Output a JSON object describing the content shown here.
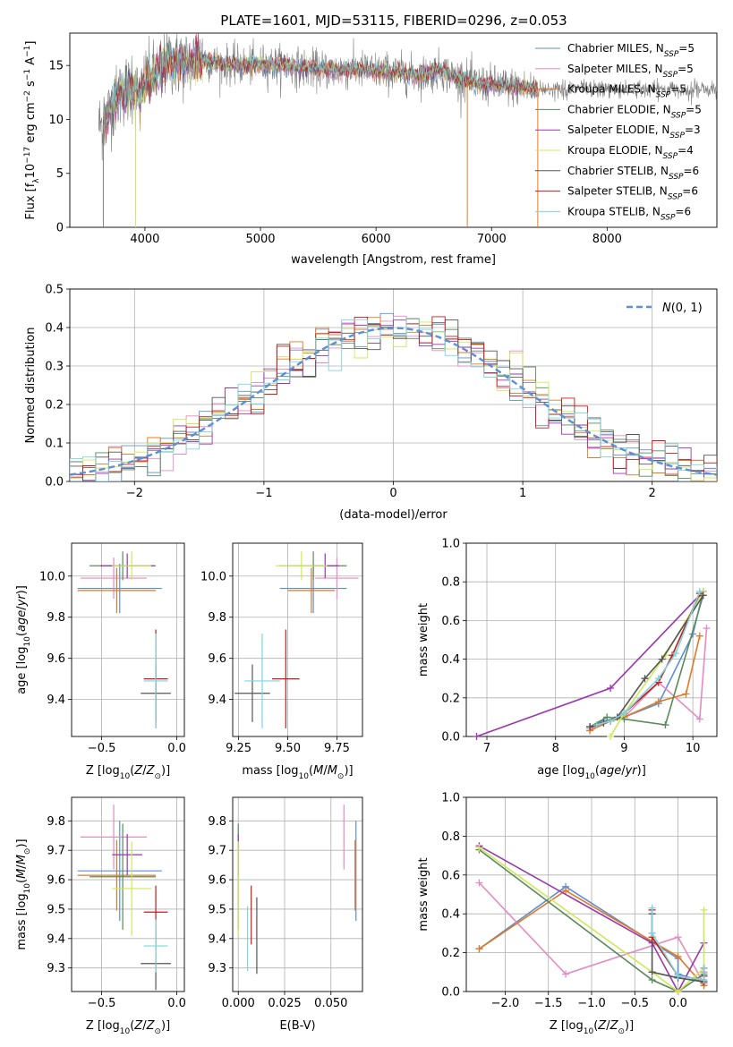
{
  "figure_title": "PLATE=1601, MJD=53115, FIBERID=0296, z=0.053",
  "colors": {
    "Chabrier MILES": "#5b8fd6",
    "Salpeter MILES": "#e58ac2",
    "Kroupa MILES": "#e07a25",
    "Chabrier ELODIE": "#5a8a5a",
    "Salpeter ELODIE": "#9a36b0",
    "Kroupa ELODIE": "#cfe85a",
    "Chabrier STELIB": "#555555",
    "Salpeter STELIB": "#c41b1b",
    "Kroupa STELIB": "#7dd6dc"
  },
  "chart_data": [
    {
      "id": "spectrum",
      "type": "line",
      "title": "PLATE=1601, MJD=53115, FIBERID=0296, z=0.053",
      "xlabel": "wavelength [Angstrom, rest frame]",
      "ylabel": "Flux [f_λ10^-17 erg cm^-2 s^-1 A^-1]",
      "xlim": [
        3350,
        8950
      ],
      "ylim": [
        0,
        18
      ],
      "xticks": [
        4000,
        5000,
        6000,
        7000,
        8000
      ],
      "yticks": [
        0,
        5,
        10,
        15
      ],
      "grid": false,
      "legend_position": "top-right",
      "legend": [
        {
          "model": "Chabrier MILES",
          "nssp": "5"
        },
        {
          "model": "Salpeter MILES",
          "nssp": "5"
        },
        {
          "model": "Kroupa MILES",
          "nssp": "5"
        },
        {
          "model": "Chabrier ELODIE",
          "nssp": "5"
        },
        {
          "model": "Salpeter ELODIE",
          "nssp": "3"
        },
        {
          "model": "Kroupa ELODIE",
          "nssp": "4"
        },
        {
          "model": "Chabrier STELIB",
          "nssp": "6"
        },
        {
          "model": "Salpeter STELIB",
          "nssp": "6"
        },
        {
          "model": "Kroupa STELIB",
          "nssp": "6"
        }
      ],
      "continuum": [
        [
          3640,
          9.5
        ],
        [
          3700,
          11
        ],
        [
          3800,
          12.5
        ],
        [
          3900,
          12.8
        ],
        [
          3960,
          12.0
        ],
        [
          4000,
          13.5
        ],
        [
          4100,
          14.2
        ],
        [
          4200,
          15.5
        ],
        [
          4300,
          15.0
        ],
        [
          4400,
          15.4
        ],
        [
          4500,
          15.6
        ],
        [
          4600,
          15.2
        ],
        [
          4700,
          15.1
        ],
        [
          4800,
          15.0
        ],
        [
          4900,
          15.0
        ],
        [
          5000,
          15.1
        ],
        [
          5200,
          15.0
        ],
        [
          5400,
          14.7
        ],
        [
          5600,
          14.6
        ],
        [
          5800,
          14.6
        ],
        [
          6000,
          14.5
        ],
        [
          6200,
          14.3
        ],
        [
          6400,
          14.1
        ],
        [
          6560,
          14.6
        ],
        [
          6700,
          13.8
        ],
        [
          6900,
          13.3
        ],
        [
          7100,
          13.1
        ],
        [
          7300,
          12.9
        ],
        [
          7400,
          12.8
        ]
      ],
      "observed_extent": [
        3600,
        8950
      ],
      "model_extent": [
        3640,
        7400
      ],
      "dropouts": [
        [
          3640,
          0
        ],
        [
          3920,
          0
        ],
        [
          6790,
          0
        ],
        [
          7400,
          0
        ]
      ]
    },
    {
      "id": "residuals",
      "type": "line",
      "xlabel": "(data-model)/error",
      "ylabel": "Normed distribution",
      "xlim": [
        -2.5,
        2.5
      ],
      "ylim": [
        0,
        0.5
      ],
      "xticks": [
        -2,
        -1,
        0,
        1,
        2
      ],
      "yticks": [
        0.0,
        0.1,
        0.2,
        0.3,
        0.4,
        0.5
      ],
      "grid": true,
      "legend_position": "top-right",
      "legend": [
        {
          "name": "N(0,1)",
          "style": "dashed"
        }
      ],
      "reference_curve": "standard normal"
    },
    {
      "id": "z-vs-age",
      "type": "scatter",
      "xlabel": "Z [log10(Z/Z⊙)]",
      "ylabel": "age [log10(age/yr)]",
      "xlim": [
        -0.7,
        0.05
      ],
      "ylim": [
        9.22,
        10.16
      ],
      "xticks": [
        -0.5,
        0.0
      ],
      "yticks": [
        9.4,
        9.6,
        9.8,
        10.0
      ],
      "grid": true,
      "points": [
        {
          "model": "Chabrier MILES",
          "x": -0.38,
          "xerr": 0.28,
          "y": 9.94,
          "yerr": 0.12
        },
        {
          "model": "Salpeter MILES",
          "x": -0.42,
          "xerr": 0.22,
          "y": 9.99,
          "yerr": 0.1
        },
        {
          "model": "Kroupa MILES",
          "x": -0.4,
          "xerr": 0.26,
          "y": 9.93,
          "yerr": 0.11
        },
        {
          "model": "Chabrier ELODIE",
          "x": -0.36,
          "xerr": 0.22,
          "y": 10.05,
          "yerr": 0.07
        },
        {
          "model": "Salpeter ELODIE",
          "x": -0.33,
          "xerr": 0.18,
          "y": 10.05,
          "yerr": 0.06
        },
        {
          "model": "Kroupa ELODIE",
          "x": -0.3,
          "xerr": 0.13,
          "y": 10.05,
          "yerr": 0.07
        },
        {
          "model": "Chabrier STELIB",
          "x": -0.14,
          "xerr": 0.1,
          "y": 9.43,
          "yerr": 0.14
        },
        {
          "model": "Salpeter STELIB",
          "x": -0.14,
          "xerr": 0.08,
          "y": 9.5,
          "yerr": 0.24
        },
        {
          "model": "Kroupa STELIB",
          "x": -0.14,
          "xerr": 0.08,
          "y": 9.49,
          "yerr": 0.23
        }
      ]
    },
    {
      "id": "mass-vs-age",
      "type": "scatter",
      "xlabel": "mass [log10(M/M⊙)]",
      "ylabel": "",
      "xlim": [
        9.22,
        9.88
      ],
      "ylim": [
        9.22,
        10.16
      ],
      "xticks": [
        9.25,
        9.5,
        9.75
      ],
      "yticks": [
        9.4,
        9.6,
        9.8,
        10.0
      ],
      "grid": true,
      "points": [
        {
          "model": "Chabrier MILES",
          "x": 9.63,
          "xerr": 0.17,
          "y": 9.94,
          "yerr": 0.12
        },
        {
          "model": "Salpeter MILES",
          "x": 9.75,
          "xerr": 0.11,
          "y": 9.99,
          "yerr": 0.1
        },
        {
          "model": "Kroupa MILES",
          "x": 9.62,
          "xerr": 0.12,
          "y": 9.93,
          "yerr": 0.11
        },
        {
          "model": "Chabrier ELODIE",
          "x": 9.63,
          "xerr": 0.17,
          "y": 10.05,
          "yerr": 0.07
        },
        {
          "model": "Salpeter ELODIE",
          "x": 9.69,
          "xerr": 0.07,
          "y": 10.05,
          "yerr": 0.06
        },
        {
          "model": "Kroupa ELODIE",
          "x": 9.57,
          "xerr": 0.13,
          "y": 10.05,
          "yerr": 0.07
        },
        {
          "model": "Chabrier STELIB",
          "x": 9.32,
          "xerr": 0.09,
          "y": 9.43,
          "yerr": 0.14
        },
        {
          "model": "Salpeter STELIB",
          "x": 9.49,
          "xerr": 0.07,
          "y": 9.5,
          "yerr": 0.24
        },
        {
          "model": "Kroupa STELIB",
          "x": 9.37,
          "xerr": 0.09,
          "y": 9.49,
          "yerr": 0.23
        }
      ]
    },
    {
      "id": "age-vs-weight",
      "type": "line",
      "xlabel": "age [log10(age/yr)]",
      "ylabel": "mass weight",
      "xlim": [
        6.7,
        10.35
      ],
      "ylim": [
        0,
        1.0
      ],
      "xticks": [
        7,
        8,
        9,
        10
      ],
      "yticks": [
        0.0,
        0.2,
        0.4,
        0.6,
        0.8,
        1.0
      ],
      "grid": true,
      "series": [
        {
          "model": "Chabrier MILES",
          "x": [
            8.5,
            8.7,
            9.0,
            9.5,
            10.0,
            10.15
          ],
          "y": [
            0.05,
            0.08,
            0.1,
            0.17,
            0.53,
            0.75
          ]
        },
        {
          "model": "Salpeter MILES",
          "x": [
            8.5,
            8.7,
            9.0,
            9.5,
            10.1,
            10.2
          ],
          "y": [
            0.04,
            0.07,
            0.1,
            0.28,
            0.09,
            0.56
          ]
        },
        {
          "model": "Kroupa MILES",
          "x": [
            8.5,
            8.8,
            9.0,
            9.5,
            9.9,
            10.1
          ],
          "y": [
            0.03,
            0.08,
            0.1,
            0.18,
            0.22,
            0.52
          ]
        },
        {
          "model": "Chabrier ELODIE",
          "x": [
            8.5,
            8.75,
            9.0,
            9.6,
            10.15
          ],
          "y": [
            0.05,
            0.1,
            0.09,
            0.06,
            0.73
          ]
        },
        {
          "model": "Salpeter ELODIE",
          "x": [
            6.85,
            8.8,
            10.15
          ],
          "y": [
            0.0,
            0.25,
            0.75
          ]
        },
        {
          "model": "Kroupa ELODIE",
          "x": [
            8.8,
            9.0,
            9.6,
            10.15
          ],
          "y": [
            0.0,
            0.12,
            0.42,
            0.75
          ]
        },
        {
          "model": "Chabrier STELIB",
          "x": [
            8.5,
            8.7,
            8.9,
            9.3,
            9.55,
            10.15
          ],
          "y": [
            0.05,
            0.07,
            0.1,
            0.3,
            0.4,
            0.73
          ]
        },
        {
          "model": "Salpeter STELIB",
          "x": [
            8.6,
            8.8,
            9.0,
            9.5,
            9.7,
            10.1
          ],
          "y": [
            0.06,
            0.08,
            0.12,
            0.28,
            0.42,
            0.74
          ]
        },
        {
          "model": "Kroupa STELIB",
          "x": [
            8.6,
            8.8,
            9.0,
            9.5,
            9.75,
            10.1
          ],
          "y": [
            0.06,
            0.08,
            0.12,
            0.3,
            0.43,
            0.75
          ]
        }
      ]
    },
    {
      "id": "z-vs-mass",
      "type": "scatter",
      "xlabel": "Z [log10(Z/Z⊙)]",
      "ylabel": "mass [log10(M/M⊙)]",
      "xlim": [
        -0.7,
        0.05
      ],
      "ylim": [
        9.22,
        9.88
      ],
      "xticks": [
        -0.5,
        0.0
      ],
      "yticks": [
        9.3,
        9.4,
        9.5,
        9.6,
        9.7,
        9.8
      ],
      "grid": true,
      "points": [
        {
          "model": "Chabrier MILES",
          "x": -0.38,
          "xerr": 0.28,
          "y": 9.63,
          "yerr": 0.17
        },
        {
          "model": "Salpeter MILES",
          "x": -0.42,
          "xerr": 0.22,
          "y": 9.745,
          "yerr": 0.11
        },
        {
          "model": "Kroupa MILES",
          "x": -0.4,
          "xerr": 0.26,
          "y": 9.615,
          "yerr": 0.12
        },
        {
          "model": "Chabrier ELODIE",
          "x": -0.36,
          "xerr": 0.22,
          "y": 9.61,
          "yerr": 0.18
        },
        {
          "model": "Salpeter ELODIE",
          "x": -0.33,
          "xerr": 0.1,
          "y": 9.685,
          "yerr": 0.07
        },
        {
          "model": "Kroupa ELODIE",
          "x": -0.3,
          "xerr": 0.13,
          "y": 9.57,
          "yerr": 0.16
        },
        {
          "model": "Chabrier STELIB",
          "x": -0.14,
          "xerr": 0.1,
          "y": 9.315,
          "yerr": 0.09
        },
        {
          "model": "Salpeter STELIB",
          "x": -0.14,
          "xerr": 0.08,
          "y": 9.49,
          "yerr": 0.09
        },
        {
          "model": "Kroupa STELIB",
          "x": -0.14,
          "xerr": 0.08,
          "y": 9.375,
          "yerr": 0.09
        }
      ]
    },
    {
      "id": "ebv-vs-mass",
      "type": "scatter",
      "xlabel": "E(B-V)",
      "ylabel": "",
      "xlim": [
        -0.003,
        0.067
      ],
      "ylim": [
        9.22,
        9.88
      ],
      "xticks": [
        0.0,
        0.025,
        0.05
      ],
      "yticks": [
        9.3,
        9.4,
        9.5,
        9.6,
        9.7,
        9.8
      ],
      "grid": true,
      "points": [
        {
          "model": "Chabrier MILES",
          "x": 0.0635,
          "y": 9.63,
          "yerr": 0.17
        },
        {
          "model": "Salpeter MILES",
          "x": 0.057,
          "y": 9.745,
          "yerr": 0.11
        },
        {
          "model": "Kroupa MILES",
          "x": 0.063,
          "y": 9.615,
          "yerr": 0.12
        },
        {
          "model": "Chabrier ELODIE",
          "x": 0.0,
          "y": 9.61,
          "yerr": 0.18
        },
        {
          "model": "Salpeter ELODIE",
          "x": 0.0,
          "y": 9.685,
          "yerr": 0.07
        },
        {
          "model": "Kroupa ELODIE",
          "x": 0.0,
          "y": 9.57,
          "yerr": 0.16
        },
        {
          "model": "Chabrier STELIB",
          "x": 0.01,
          "y": 9.41,
          "yerr": 0.13
        },
        {
          "model": "Salpeter STELIB",
          "x": 0.007,
          "y": 9.48,
          "yerr": 0.1
        },
        {
          "model": "Kroupa STELIB",
          "x": 0.005,
          "y": 9.4,
          "yerr": 0.11
        }
      ]
    },
    {
      "id": "z-vs-weight",
      "type": "line",
      "xlabel": "Z [log10(Z/Z⊙)]",
      "ylabel": "mass weight",
      "xlim": [
        -2.45,
        0.45
      ],
      "ylim": [
        0,
        1.0
      ],
      "xticks": [
        -2.0,
        -1.5,
        -1.0,
        -0.5,
        0.0
      ],
      "yticks": [
        0.0,
        0.2,
        0.4,
        0.6,
        0.8,
        1.0
      ],
      "grid": true,
      "series": [
        {
          "model": "Chabrier MILES",
          "x": [
            -2.3,
            -1.3,
            0.0,
            0.0,
            0.3
          ],
          "y": [
            0.22,
            0.54,
            0.17,
            0.09,
            0.05
          ]
        },
        {
          "model": "Salpeter MILES",
          "x": [
            -2.3,
            -1.3,
            0.0,
            0.3,
            0.3
          ],
          "y": [
            0.56,
            0.09,
            0.28,
            0.04,
            0.1
          ]
        },
        {
          "model": "Kroupa MILES",
          "x": [
            -2.3,
            -1.3,
            0.0,
            0.3,
            0.3
          ],
          "y": [
            0.22,
            0.52,
            0.18,
            0.03,
            0.08
          ]
        },
        {
          "model": "Chabrier ELODIE",
          "x": [
            -2.3,
            -0.3,
            0.0,
            0.3,
            0.3
          ],
          "y": [
            0.73,
            0.06,
            0.0,
            0.09,
            0.05
          ]
        },
        {
          "model": "Salpeter ELODIE",
          "x": [
            -2.3,
            -0.3,
            0.0,
            0.3
          ],
          "y": [
            0.75,
            0.25,
            0.0,
            0.25
          ]
        },
        {
          "model": "Kroupa ELODIE",
          "x": [
            -2.3,
            -0.3,
            0.0,
            0.3,
            0.3
          ],
          "y": [
            0.74,
            0.1,
            0.0,
            0.12,
            0.42
          ]
        },
        {
          "model": "Chabrier STELIB",
          "x": [
            -0.3,
            -0.3,
            -0.3,
            0.0,
            0.3,
            0.3
          ],
          "y": [
            0.4,
            0.3,
            0.1,
            0.07,
            0.05,
            0.08
          ]
        },
        {
          "model": "Salpeter STELIB",
          "x": [
            -0.3,
            -0.3,
            0.0,
            0.3,
            0.3
          ],
          "y": [
            0.42,
            0.28,
            0.08,
            0.06,
            0.12
          ]
        },
        {
          "model": "Kroupa STELIB",
          "x": [
            -0.3,
            -0.3,
            0.0,
            0.3,
            0.3
          ],
          "y": [
            0.43,
            0.3,
            0.08,
            0.06,
            0.12
          ]
        }
      ]
    }
  ]
}
